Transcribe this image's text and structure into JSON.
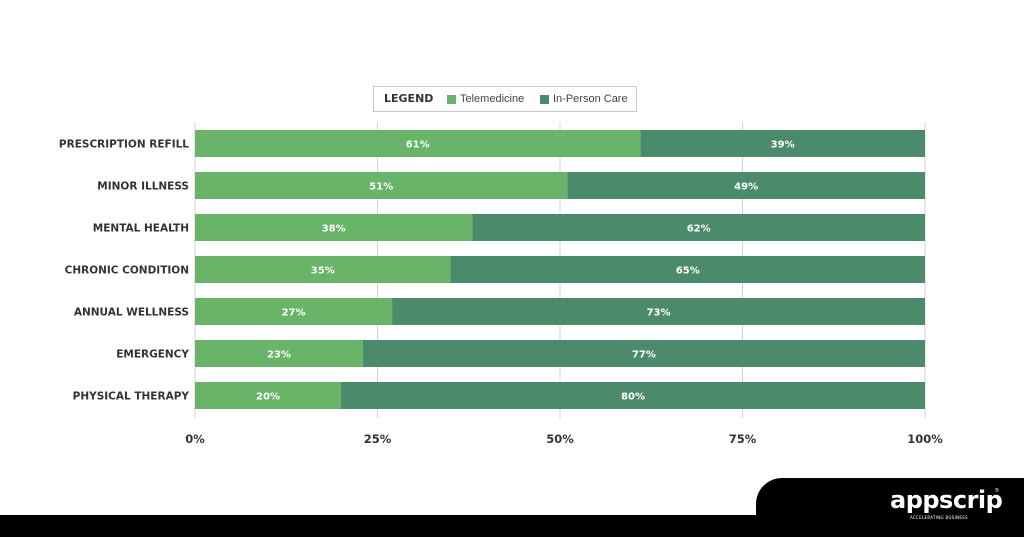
{
  "legend": {
    "title": "LEGEND",
    "items": [
      {
        "label": "Telemedicine",
        "color": "#69b468"
      },
      {
        "label": "In-Person Care",
        "color": "#4b8b6b"
      }
    ]
  },
  "chart_data": {
    "type": "bar",
    "orientation": "horizontal",
    "stacked": true,
    "categories": [
      "PRESCRIPTION REFILL",
      "MINOR ILLNESS",
      "MENTAL HEALTH",
      "CHRONIC CONDITION",
      "ANNUAL WELLNESS",
      "EMERGENCY",
      "PHYSICAL THERAPY"
    ],
    "series": [
      {
        "name": "Telemedicine",
        "color": "#69b468",
        "values": [
          61,
          51,
          38,
          35,
          27,
          23,
          20
        ]
      },
      {
        "name": "In-Person Care",
        "color": "#4b8b6b",
        "values": [
          39,
          49,
          62,
          65,
          73,
          77,
          80
        ]
      }
    ],
    "value_labels": [
      [
        "61%",
        "51%",
        "38%",
        "35%",
        "27%",
        "23%",
        "20%"
      ],
      [
        "39%",
        "49%",
        "62%",
        "65%",
        "73%",
        "77%",
        "80%"
      ]
    ],
    "xlim": [
      0,
      100
    ],
    "x_ticks": [
      "0%",
      "25%",
      "50%",
      "75%",
      "100%"
    ],
    "x_tick_values": [
      0,
      25,
      50,
      75,
      100
    ],
    "grid": "vertical",
    "legend_position": "top-center"
  },
  "brand": {
    "name": "appscrip",
    "tagline": "ACCELERATING BUSINESS",
    "mark": "®"
  }
}
